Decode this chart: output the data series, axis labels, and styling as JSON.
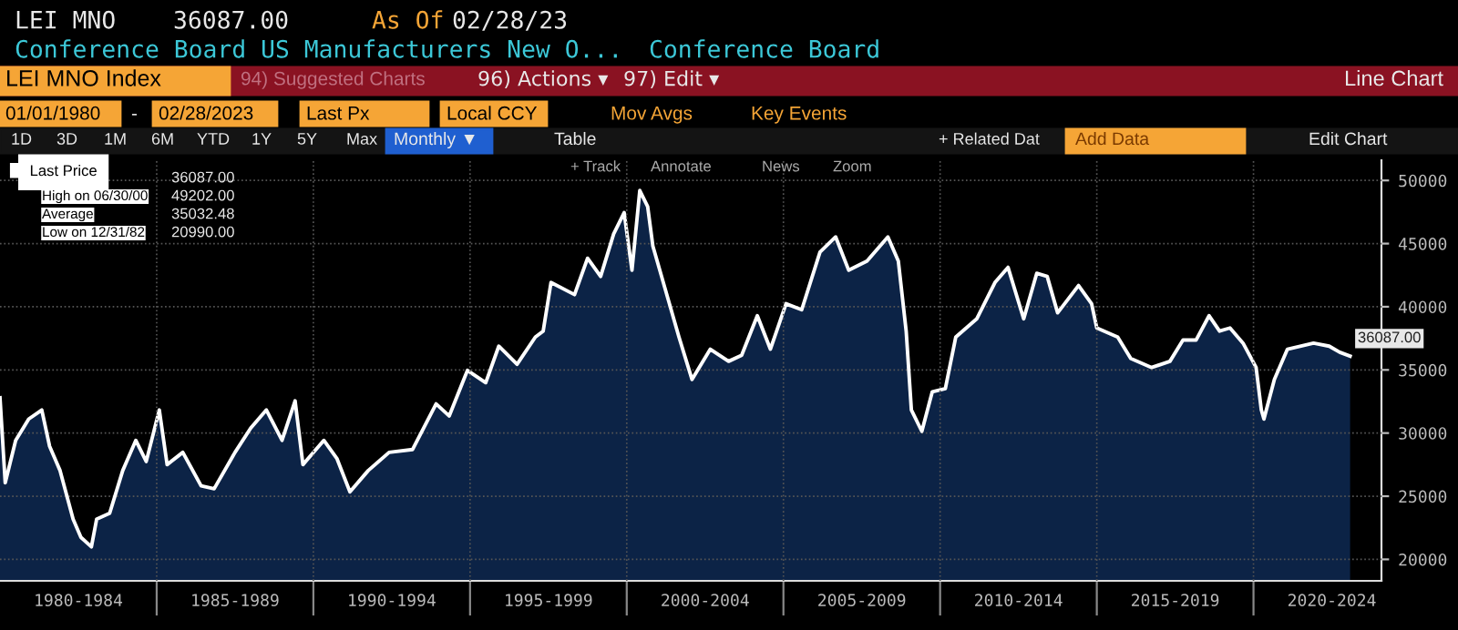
{
  "chart_data": {
    "type": "area",
    "annotations": [
      "LEI MNO",
      "36087.00",
      "As Of",
      "02/28/23",
      "Conference Board US Manufacturers New O...",
      "Conference Board",
      "LEI MNO Index",
      "94) Suggested Charts",
      "96) Actions ▾",
      "97) Edit ▾",
      "Line Chart",
      "01/01/1980",
      "-",
      "02/28/2023",
      "Last Px",
      "Local CCY",
      "Mov Avgs",
      "Key Events",
      "1D",
      "3D",
      "1M",
      "6M",
      "YTD",
      "1Y",
      "5Y",
      "Max",
      "Monthly ▼",
      "Table",
      "+ Related Dat",
      "Add Data",
      "Edit Chart",
      "+ Track",
      "Annotate",
      "News",
      "Zoom",
      "36087.00",
      "High on 06/30/00",
      "49202.00",
      "Average",
      "35032.48",
      "Low on 12/31/82",
      "20990.00",
      {
        "text": "36087.00",
        "x": "2023-02",
        "y": 36087
      }
    ],
    "series": [
      {
        "name": "Last Price",
        "color": "#0c2346",
        "x": [
          "1980-01",
          "1980-03",
          "1980-07",
          "1980-12",
          "1981-05",
          "1981-08",
          "1981-12",
          "1982-05",
          "1982-08",
          "1982-12",
          "1983-02",
          "1983-07",
          "1983-12",
          "1984-05",
          "1984-09",
          "1985-02",
          "1985-05",
          "1985-11",
          "1986-06",
          "1986-11",
          "1987-07",
          "1988-01",
          "1988-07",
          "1989-01",
          "1989-06",
          "1989-09",
          "1990-05",
          "1990-10",
          "1991-03",
          "1991-10",
          "1992-06",
          "1993-03",
          "1993-12",
          "1994-05",
          "1994-12",
          "1995-07",
          "1995-12",
          "1996-07",
          "1997-02",
          "1997-05",
          "1997-08",
          "1998-05",
          "1998-10",
          "1999-03",
          "1999-08",
          "1999-12",
          "2000-03",
          "2000-06",
          "2000-09",
          "2000-11",
          "2001-05",
          "2001-09",
          "2002-02",
          "2002-09",
          "2003-04",
          "2003-09",
          "2004-03",
          "2004-08",
          "2005-02",
          "2005-08",
          "2006-03",
          "2006-09",
          "2007-02",
          "2007-09",
          "2008-05",
          "2008-09",
          "2008-12",
          "2009-02",
          "2009-06",
          "2009-10",
          "2010-03",
          "2010-07",
          "2011-03",
          "2011-10",
          "2012-03",
          "2012-09",
          "2013-02",
          "2013-06",
          "2013-10",
          "2014-06",
          "2014-11",
          "2015-01",
          "2015-09",
          "2016-02",
          "2016-10",
          "2017-05",
          "2017-10",
          "2018-03",
          "2018-08",
          "2018-12",
          "2019-04",
          "2019-09",
          "2020-02",
          "2020-04",
          "2020-05",
          "2020-09",
          "2021-02",
          "2021-12",
          "2022-06",
          "2022-10",
          "2023-02"
        ],
        "values": [
          32800,
          26060,
          29420,
          31110,
          31830,
          28950,
          27030,
          23180,
          21740,
          20990,
          23180,
          23650,
          27030,
          29420,
          27750,
          31830,
          27500,
          28470,
          25820,
          25590,
          28470,
          30390,
          31830,
          29420,
          32550,
          27500,
          29420,
          27990,
          25340,
          27030,
          28470,
          28700,
          32310,
          31350,
          34960,
          33990,
          36880,
          35440,
          37600,
          38070,
          41920,
          40960,
          43840,
          42400,
          45770,
          47450,
          42890,
          49202,
          47940,
          44810,
          40480,
          37600,
          34240,
          36640,
          35680,
          36160,
          39290,
          36640,
          40240,
          39760,
          44330,
          45530,
          42890,
          43610,
          45530,
          43610,
          38070,
          31830,
          30140,
          33270,
          33510,
          37600,
          39040,
          41920,
          43120,
          39040,
          42650,
          42400,
          39520,
          41680,
          40240,
          38320,
          37600,
          35910,
          35190,
          35680,
          37360,
          37360,
          39290,
          38070,
          38320,
          37120,
          35190,
          31830,
          31110,
          34240,
          36640,
          37120,
          36880,
          36400,
          36087
        ]
      }
    ],
    "xlim": [
      "1980-01",
      "2024-02"
    ],
    "xticks": [
      {
        "value": "1982-07",
        "label": "1980-1984"
      },
      {
        "value": "1985-01",
        "label": null
      },
      {
        "value": "1987-07",
        "label": "1985-1989"
      },
      {
        "value": "1990-01",
        "label": null
      },
      {
        "value": "1992-07",
        "label": "1990-1994"
      },
      {
        "value": "1995-01",
        "label": null
      },
      {
        "value": "1997-07",
        "label": "1995-1999"
      },
      {
        "value": "2000-01",
        "label": null
      },
      {
        "value": "2002-07",
        "label": "2000-2004"
      },
      {
        "value": "2005-01",
        "label": null
      },
      {
        "value": "2007-07",
        "label": "2005-2009"
      },
      {
        "value": "2010-01",
        "label": null
      },
      {
        "value": "2012-07",
        "label": "2010-2014"
      },
      {
        "value": "2015-01",
        "label": null
      },
      {
        "value": "2017-07",
        "label": "2015-2019"
      },
      {
        "value": "2020-01",
        "label": null
      },
      {
        "value": "2022-07",
        "label": "2020-2024"
      }
    ],
    "ylim": [
      18300,
      51600
    ],
    "yticks": [
      20000,
      25000,
      30000,
      35000,
      40000,
      45000,
      50000
    ],
    "grid": true,
    "legend": "top left"
  }
}
